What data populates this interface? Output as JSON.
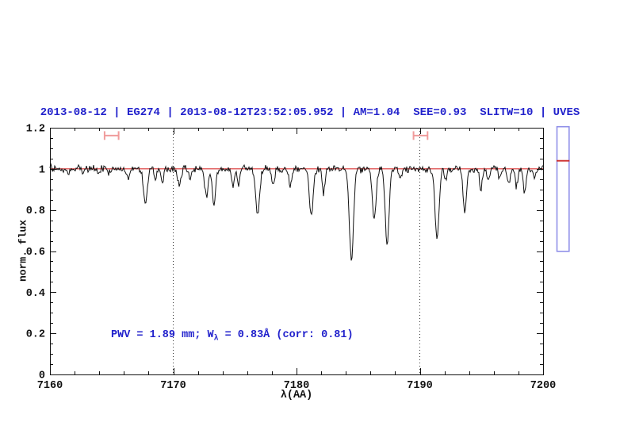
{
  "page": {
    "background": "#ffffff"
  },
  "header": {
    "title": "2013-08-12 | EG274 | 2013-08-12T23:52:05.952 | AM=1.04  SEE=0.93  SLITW=10 | UVES",
    "title_color": "#2222cc"
  },
  "chart_data": {
    "type": "line",
    "title": "2013-08-12 | EG274 | 2013-08-12T23:52:05.952 | AM=1.04  SEE=0.93  SLITW=10 | UVES",
    "xlabel": "λ(AA)",
    "ylabel": "norm. flux",
    "xlim": [
      7160,
      7200
    ],
    "ylim": [
      0,
      1.2
    ],
    "grid": "off",
    "x_major_ticks": [
      7160,
      7170,
      7180,
      7190,
      7200
    ],
    "x_major_labels": [
      "7160",
      "7170",
      "7180",
      "7190",
      "7200"
    ],
    "x_minor_step": 2,
    "y_major_ticks": [
      0,
      0.2,
      0.4,
      0.6,
      0.8,
      1.0,
      1.2
    ],
    "y_major_labels": [
      "0",
      "0.2",
      "0.4",
      "0.6",
      "0.8",
      "1",
      "1.2"
    ],
    "y_minor_step": 0.05,
    "axis_color": "#111111",
    "dotted_vlines": {
      "x": [
        7170,
        7190
      ],
      "color": "#333333"
    },
    "continuum": {
      "flux": 1.0,
      "color": "#d83232"
    },
    "range_markers": [
      {
        "x_center": 7165.0,
        "x_halfwidth": 0.57,
        "y_flux": 1.162,
        "cap_halfheight_flux": 0.021,
        "color": "#f09c9c"
      },
      {
        "x_center": 7190.06,
        "x_halfwidth": 0.57,
        "y_flux": 1.162,
        "cap_halfheight_flux": 0.021,
        "color": "#f09c9c"
      }
    ],
    "annotation": {
      "text_prefix": "PWV = 1.89 mm; W",
      "text_sub": "λ",
      "text_suffix": " = 0.83Å (corr: 0.81)",
      "color": "#2222cc"
    },
    "side_gauge": {
      "top_flux": 1.205,
      "bottom_flux": 0.599,
      "line_flux": 1.039,
      "border_color": "#8f8fe8",
      "line_color": "#cc2a2a"
    },
    "spectrum": {
      "color": "#111111",
      "noise_sigma": 0.0085,
      "seed": 20130812,
      "absorption_lines_format": [
        "center_A",
        "depth",
        "sigma_A"
      ],
      "absorption_lines": [
        [
          7161.5,
          0.02,
          0.1
        ],
        [
          7162.7,
          0.025,
          0.1
        ],
        [
          7164.0,
          0.022,
          0.1
        ],
        [
          7164.8,
          0.03,
          0.11
        ],
        [
          7166.35,
          0.045,
          0.12
        ],
        [
          7167.75,
          0.17,
          0.16
        ],
        [
          7168.55,
          0.052,
          0.1
        ],
        [
          7169.1,
          0.068,
          0.11
        ],
        [
          7170.5,
          0.078,
          0.14
        ],
        [
          7171.35,
          0.05,
          0.1
        ],
        [
          7172.7,
          0.135,
          0.13
        ],
        [
          7173.3,
          0.163,
          0.14
        ],
        [
          7174.85,
          0.085,
          0.11
        ],
        [
          7175.3,
          0.07,
          0.1
        ],
        [
          7176.85,
          0.225,
          0.16
        ],
        [
          7178.1,
          0.08,
          0.11
        ],
        [
          7179.5,
          0.088,
          0.12
        ],
        [
          7181.2,
          0.235,
          0.15
        ],
        [
          7182.2,
          0.118,
          0.11
        ],
        [
          7184.45,
          0.435,
          0.17
        ],
        [
          7186.3,
          0.25,
          0.15
        ],
        [
          7187.35,
          0.365,
          0.16
        ],
        [
          7188.4,
          0.045,
          0.1
        ],
        [
          7191.4,
          0.345,
          0.16
        ],
        [
          7192.1,
          0.06,
          0.1
        ],
        [
          7193.65,
          0.205,
          0.14
        ],
        [
          7194.95,
          0.105,
          0.11
        ],
        [
          7195.55,
          0.055,
          0.1
        ],
        [
          7196.5,
          0.05,
          0.1
        ],
        [
          7197.2,
          0.082,
          0.1
        ],
        [
          7197.85,
          0.088,
          0.1
        ],
        [
          7198.5,
          0.113,
          0.11
        ],
        [
          7199.3,
          0.05,
          0.1
        ]
      ]
    }
  }
}
